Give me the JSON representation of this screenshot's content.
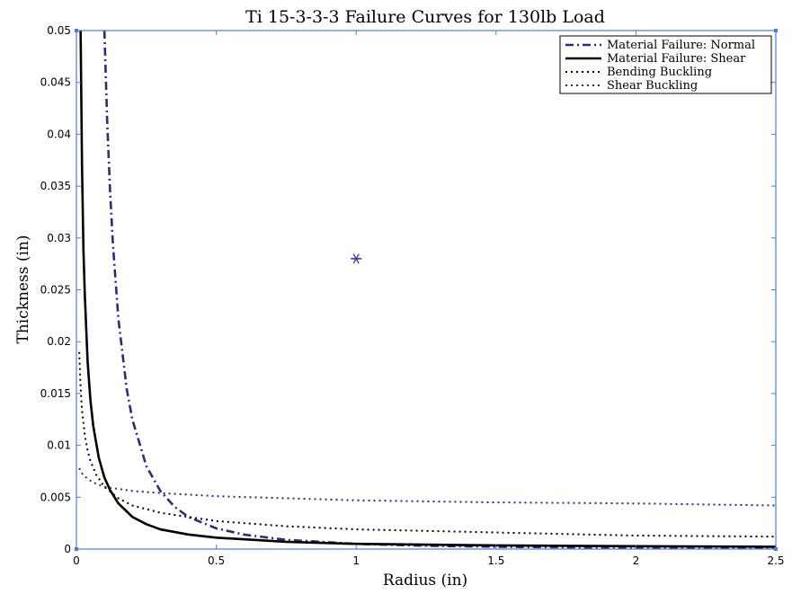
{
  "chart_data": {
    "type": "line",
    "title": "Ti 15-3-3-3 Failure Curves for 130lb Load",
    "xlabel": "Radius (in)",
    "ylabel": "Thickness (in)",
    "xlim": [
      0,
      2.5
    ],
    "ylim": [
      0,
      0.05
    ],
    "xticks": [
      "0",
      "0.5",
      "1",
      "1.5",
      "2",
      "2.5"
    ],
    "xtick_values": [
      0,
      0.5,
      1,
      1.5,
      2,
      2.5
    ],
    "yticks": [
      "0",
      "0.005",
      "0.01",
      "0.015",
      "0.02",
      "0.025",
      "0.03",
      "0.035",
      "0.04",
      "0.045",
      "0.05"
    ],
    "ytick_values": [
      0,
      0.005,
      0.01,
      0.015,
      0.02,
      0.025,
      0.03,
      0.035,
      0.04,
      0.045,
      0.05
    ],
    "grid": false,
    "legend_position": "top-right",
    "series": [
      {
        "name": "Material Failure: Normal",
        "color": "#2b2b80",
        "style": "dash-dot",
        "x": [
          0.1,
          0.11,
          0.12,
          0.13,
          0.15,
          0.18,
          0.2,
          0.25,
          0.3,
          0.35,
          0.4,
          0.5,
          0.6,
          0.75,
          1.0,
          1.25,
          1.5,
          2.0,
          2.5
        ],
        "y": [
          0.05,
          0.0413,
          0.0347,
          0.0296,
          0.0222,
          0.0154,
          0.0125,
          0.008,
          0.0056,
          0.0041,
          0.0031,
          0.002,
          0.00139,
          0.00089,
          0.0005,
          0.00032,
          0.00022,
          0.000125,
          8e-05
        ]
      },
      {
        "name": "Material Failure: Shear",
        "color": "#000000",
        "style": "solid",
        "x": [
          0.015,
          0.02,
          0.025,
          0.03,
          0.04,
          0.05,
          0.06,
          0.08,
          0.1,
          0.12,
          0.15,
          0.2,
          0.25,
          0.3,
          0.4,
          0.5,
          0.75,
          1.0,
          1.5,
          2.0,
          2.5
        ],
        "y": [
          0.05,
          0.037,
          0.029,
          0.0245,
          0.0181,
          0.0144,
          0.0119,
          0.0088,
          0.0069,
          0.0057,
          0.0044,
          0.0031,
          0.0024,
          0.0019,
          0.0014,
          0.0011,
          0.0007,
          0.0005,
          0.00035,
          0.00028,
          0.00022
        ]
      },
      {
        "name": "Bending Buckling",
        "color": "#000000",
        "style": "dotted",
        "x": [
          0.01,
          0.015,
          0.02,
          0.03,
          0.04,
          0.05,
          0.07,
          0.1,
          0.15,
          0.2,
          0.3,
          0.5,
          0.75,
          1.0,
          1.5,
          2.0,
          2.5
        ],
        "y": [
          0.019,
          0.0155,
          0.0134,
          0.011,
          0.0095,
          0.0085,
          0.0072,
          0.006,
          0.0049,
          0.0042,
          0.0035,
          0.0027,
          0.0022,
          0.0019,
          0.0016,
          0.0013,
          0.0012
        ]
      },
      {
        "name": "Shear Buckling",
        "color": "#2b2b80",
        "style": "dotted",
        "x": [
          0.01,
          0.02,
          0.03,
          0.05,
          0.07,
          0.1,
          0.15,
          0.2,
          0.3,
          0.5,
          0.75,
          1.0,
          1.5,
          2.0,
          2.5
        ],
        "y": [
          0.0078,
          0.0073,
          0.007,
          0.0066,
          0.0063,
          0.006,
          0.0058,
          0.0056,
          0.0054,
          0.0051,
          0.0049,
          0.0047,
          0.0045,
          0.0044,
          0.0042
        ]
      }
    ],
    "annotations": [
      {
        "marker": "asterisk",
        "x": 1.0,
        "y": 0.028,
        "color": "#3a3aa8"
      }
    ]
  }
}
